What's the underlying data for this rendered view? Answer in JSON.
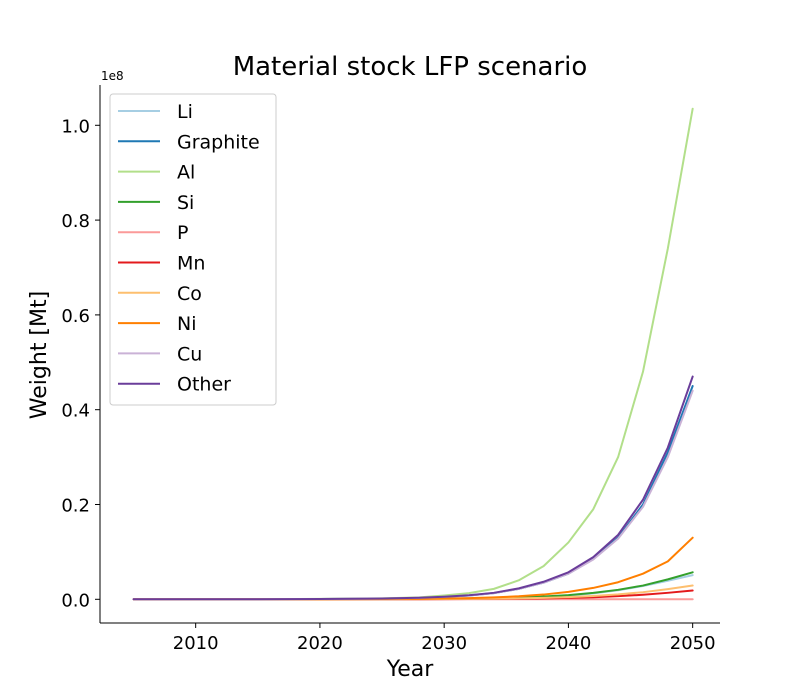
{
  "chart_data": {
    "type": "line",
    "title": "Material stock LFP scenario",
    "xlabel": "Year",
    "ylabel": "Weight [Mt]",
    "y_scale_label": "1e8",
    "y_multiplier": 100000000,
    "xlim": [
      2002.3,
      2052.2
    ],
    "ylim": [
      -0.05,
      1.085
    ],
    "x_ticks": [
      2010,
      2020,
      2030,
      2040,
      2050
    ],
    "y_ticks": [
      0.0,
      0.2,
      0.4,
      0.6,
      0.8,
      1.0
    ],
    "x_tick_labels": [
      "2010",
      "2020",
      "2030",
      "2040",
      "2050"
    ],
    "y_tick_labels": [
      "0.0",
      "0.2",
      "0.4",
      "0.6",
      "0.8",
      "1.0"
    ],
    "grid": false,
    "legend_position": "upper-left",
    "x": [
      2005,
      2010,
      2015,
      2020,
      2025,
      2028,
      2030,
      2032,
      2034,
      2036,
      2038,
      2040,
      2042,
      2044,
      2046,
      2048,
      2050
    ],
    "series": [
      {
        "name": "Li",
        "color": "#a6cee3",
        "values": [
          0,
          0,
          0,
          0,
          0.0003,
          0.0006,
          0.0009,
          0.0014,
          0.0022,
          0.0034,
          0.0052,
          0.008,
          0.0125,
          0.019,
          0.028,
          0.039,
          0.051
        ]
      },
      {
        "name": "Graphite",
        "color": "#1f78b4",
        "values": [
          0,
          0,
          0,
          0.0005,
          0.0015,
          0.003,
          0.005,
          0.008,
          0.013,
          0.022,
          0.035,
          0.054,
          0.085,
          0.13,
          0.2,
          0.31,
          0.45
        ]
      },
      {
        "name": "Al",
        "color": "#b2df8a",
        "values": [
          0,
          0,
          0,
          0.0008,
          0.002,
          0.004,
          0.008,
          0.013,
          0.022,
          0.04,
          0.07,
          0.12,
          0.19,
          0.3,
          0.48,
          0.74,
          1.035
        ]
      },
      {
        "name": "Si",
        "color": "#33a02c",
        "values": [
          0,
          0,
          0,
          0,
          0.0003,
          0.0006,
          0.001,
          0.0015,
          0.0024,
          0.0037,
          0.0058,
          0.0088,
          0.0135,
          0.02,
          0.029,
          0.042,
          0.057
        ]
      },
      {
        "name": "P",
        "color": "#fb9a99",
        "values": [
          0,
          0,
          0,
          0,
          0,
          0,
          0,
          0,
          0,
          0,
          0,
          0,
          0,
          0,
          0,
          0,
          0
        ]
      },
      {
        "name": "Mn",
        "color": "#e31a1c",
        "values": [
          0,
          0,
          0,
          0,
          0.0001,
          0.0002,
          0.0003,
          0.0005,
          0.0008,
          0.0012,
          0.0019,
          0.0029,
          0.0044,
          0.0066,
          0.0096,
          0.0137,
          0.0185
        ]
      },
      {
        "name": "Co",
        "color": "#fdbf6f",
        "values": [
          0,
          0,
          0,
          0,
          0.0001,
          0.0003,
          0.0005,
          0.0008,
          0.0012,
          0.0019,
          0.003,
          0.0045,
          0.0069,
          0.0103,
          0.015,
          0.0215,
          0.029
        ]
      },
      {
        "name": "Ni",
        "color": "#ff7f00",
        "values": [
          0,
          0,
          0,
          0.0002,
          0.0005,
          0.001,
          0.0016,
          0.0025,
          0.004,
          0.0064,
          0.01,
          0.0157,
          0.024,
          0.036,
          0.054,
          0.08,
          0.13
        ]
      },
      {
        "name": "Cu",
        "color": "#cab2d6",
        "values": [
          0,
          0,
          0,
          0.0005,
          0.0015,
          0.003,
          0.005,
          0.008,
          0.013,
          0.022,
          0.035,
          0.054,
          0.084,
          0.128,
          0.195,
          0.3,
          0.44
        ]
      },
      {
        "name": "Other",
        "color": "#6a3d9a",
        "values": [
          0,
          0,
          0,
          0.0005,
          0.0016,
          0.0032,
          0.0053,
          0.0085,
          0.0137,
          0.023,
          0.037,
          0.057,
          0.089,
          0.136,
          0.21,
          0.32,
          0.47
        ]
      }
    ]
  }
}
